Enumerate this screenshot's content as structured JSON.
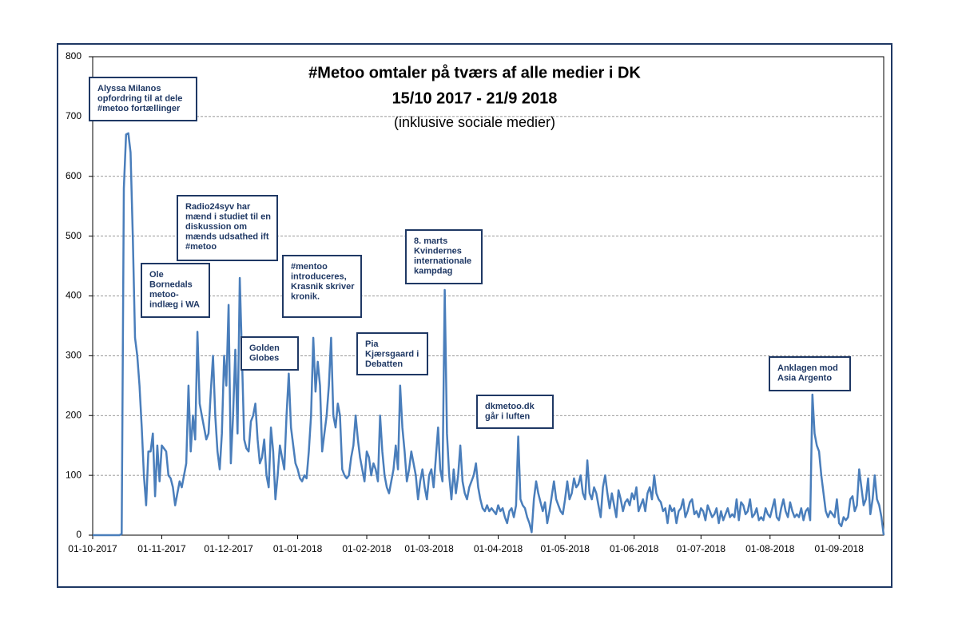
{
  "chart_data": {
    "type": "line",
    "title": "#Metoo omtaler på tværs af alle medier i DK",
    "subtitle": [
      "15/10 2017 - 21/9 2018",
      "(inklusive sociale medier)"
    ],
    "color": "#4a7ebb",
    "grid": true,
    "ylim": [
      0,
      800
    ],
    "yticks": [
      0,
      100,
      200,
      300,
      400,
      500,
      600,
      700,
      800
    ],
    "xlim": [
      "2017-10-01",
      "2018-09-21"
    ],
    "xticks": [
      {
        "value": "2017-10-01",
        "label": "01-10-2017"
      },
      {
        "value": "2017-11-01",
        "label": "01-11-2017"
      },
      {
        "value": "2017-12-01",
        "label": "01-12-2017"
      },
      {
        "value": "2018-01-01",
        "label": "01-01-2018"
      },
      {
        "value": "2018-02-01",
        "label": "01-02-2018"
      },
      {
        "value": "2018-03-01",
        "label": "01-03-2018"
      },
      {
        "value": "2018-04-01",
        "label": "01-04-2018"
      },
      {
        "value": "2018-05-01",
        "label": "01-05-2018"
      },
      {
        "value": "2018-06-01",
        "label": "01-06-2018"
      },
      {
        "value": "2018-07-01",
        "label": "01-07-2018"
      },
      {
        "value": "2018-08-01",
        "label": "01-08-2018"
      },
      {
        "value": "2018-09-01",
        "label": "01-09-2018"
      }
    ],
    "annotations": [
      {
        "lines": [
          "Alyssa Milanos",
          "opfordring til at dele",
          "#metoo fortællinger"
        ]
      },
      {
        "lines": [
          "Ole",
          "Bornedals",
          "metoo-",
          "indlæg i WA"
        ]
      },
      {
        "lines": [
          "Radio24syv har",
          "mænd i studiet til en",
          "diskussion om",
          "mænds udsathed ift",
          "#metoo"
        ]
      },
      {
        "lines": [
          "#mentoo",
          "introduceres,",
          "Krasnik skriver",
          "kronik."
        ]
      },
      {
        "lines": [
          "Golden",
          "Globes"
        ]
      },
      {
        "lines": [
          "Pia",
          "Kjærsgaard i",
          "Debatten"
        ]
      },
      {
        "lines": [
          "8. marts",
          "Kvindernes",
          "internationale",
          "kampdag"
        ]
      },
      {
        "lines": [
          "dkmetoo.dk",
          "går i luften"
        ]
      },
      {
        "lines": [
          "Anklagen mod",
          "Asia Argento"
        ]
      }
    ],
    "x": [
      "2017-10-01",
      "2017-10-02",
      "2017-10-03",
      "2017-10-04",
      "2017-10-05",
      "2017-10-06",
      "2017-10-07",
      "2017-10-08",
      "2017-10-09",
      "2017-10-10",
      "2017-10-11",
      "2017-10-12",
      "2017-10-13",
      "2017-10-14",
      "2017-10-15",
      "2017-10-16",
      "2017-10-17",
      "2017-10-18",
      "2017-10-19",
      "2017-10-20",
      "2017-10-21",
      "2017-10-22",
      "2017-10-23",
      "2017-10-24",
      "2017-10-25",
      "2017-10-26",
      "2017-10-27",
      "2017-10-28",
      "2017-10-29",
      "2017-10-30",
      "2017-10-31",
      "2017-11-01",
      "2017-11-02",
      "2017-11-03",
      "2017-11-04",
      "2017-11-05",
      "2017-11-06",
      "2017-11-07",
      "2017-11-08",
      "2017-11-09",
      "2017-11-10",
      "2017-11-11",
      "2017-11-12",
      "2017-11-13",
      "2017-11-14",
      "2017-11-15",
      "2017-11-16",
      "2017-11-17",
      "2017-11-18",
      "2017-11-19",
      "2017-11-20",
      "2017-11-21",
      "2017-11-22",
      "2017-11-23",
      "2017-11-24",
      "2017-11-25",
      "2017-11-26",
      "2017-11-27",
      "2017-11-28",
      "2017-11-29",
      "2017-11-30",
      "2017-12-01",
      "2017-12-02",
      "2017-12-03",
      "2017-12-04",
      "2017-12-05",
      "2017-12-06",
      "2017-12-07",
      "2017-12-08",
      "2017-12-09",
      "2017-12-10",
      "2017-12-11",
      "2017-12-12",
      "2017-12-13",
      "2017-12-14",
      "2017-12-15",
      "2017-12-16",
      "2017-12-17",
      "2017-12-18",
      "2017-12-19",
      "2017-12-20",
      "2017-12-21",
      "2017-12-22",
      "2017-12-23",
      "2017-12-24",
      "2017-12-25",
      "2017-12-26",
      "2017-12-27",
      "2017-12-28",
      "2017-12-29",
      "2017-12-30",
      "2017-12-31",
      "2018-01-01",
      "2018-01-02",
      "2018-01-03",
      "2018-01-04",
      "2018-01-05",
      "2018-01-06",
      "2018-01-07",
      "2018-01-08",
      "2018-01-09",
      "2018-01-10",
      "2018-01-11",
      "2018-01-12",
      "2018-01-13",
      "2018-01-14",
      "2018-01-15",
      "2018-01-16",
      "2018-01-17",
      "2018-01-18",
      "2018-01-19",
      "2018-01-20",
      "2018-01-21",
      "2018-01-22",
      "2018-01-23",
      "2018-01-24",
      "2018-01-25",
      "2018-01-26",
      "2018-01-27",
      "2018-01-28",
      "2018-01-29",
      "2018-01-30",
      "2018-01-31",
      "2018-02-01",
      "2018-02-02",
      "2018-02-03",
      "2018-02-04",
      "2018-02-05",
      "2018-02-06",
      "2018-02-07",
      "2018-02-08",
      "2018-02-09",
      "2018-02-10",
      "2018-02-11",
      "2018-02-12",
      "2018-02-13",
      "2018-02-14",
      "2018-02-15",
      "2018-02-16",
      "2018-02-17",
      "2018-02-18",
      "2018-02-19",
      "2018-02-20",
      "2018-02-21",
      "2018-02-22",
      "2018-02-23",
      "2018-02-24",
      "2018-02-25",
      "2018-02-26",
      "2018-02-27",
      "2018-02-28",
      "2018-03-01",
      "2018-03-02",
      "2018-03-03",
      "2018-03-04",
      "2018-03-05",
      "2018-03-06",
      "2018-03-07",
      "2018-03-08",
      "2018-03-09",
      "2018-03-10",
      "2018-03-11",
      "2018-03-12",
      "2018-03-13",
      "2018-03-14",
      "2018-03-15",
      "2018-03-16",
      "2018-03-17",
      "2018-03-18",
      "2018-03-19",
      "2018-03-20",
      "2018-03-21",
      "2018-03-22",
      "2018-03-23",
      "2018-03-24",
      "2018-03-25",
      "2018-03-26",
      "2018-03-27",
      "2018-03-28",
      "2018-03-29",
      "2018-03-30",
      "2018-03-31",
      "2018-04-01",
      "2018-04-02",
      "2018-04-03",
      "2018-04-04",
      "2018-04-05",
      "2018-04-06",
      "2018-04-07",
      "2018-04-08",
      "2018-04-09",
      "2018-04-10",
      "2018-04-11",
      "2018-04-12",
      "2018-04-13",
      "2018-04-14",
      "2018-04-15",
      "2018-04-16",
      "2018-04-17",
      "2018-04-18",
      "2018-04-19",
      "2018-04-20",
      "2018-04-21",
      "2018-04-22",
      "2018-04-23",
      "2018-04-24",
      "2018-04-25",
      "2018-04-26",
      "2018-04-27",
      "2018-04-28",
      "2018-04-29",
      "2018-04-30",
      "2018-05-01",
      "2018-05-02",
      "2018-05-03",
      "2018-05-04",
      "2018-05-05",
      "2018-05-06",
      "2018-05-07",
      "2018-05-08",
      "2018-05-09",
      "2018-05-10",
      "2018-05-11",
      "2018-05-12",
      "2018-05-13",
      "2018-05-14",
      "2018-05-15",
      "2018-05-16",
      "2018-05-17",
      "2018-05-18",
      "2018-05-19",
      "2018-05-20",
      "2018-05-21",
      "2018-05-22",
      "2018-05-23",
      "2018-05-24",
      "2018-05-25",
      "2018-05-26",
      "2018-05-27",
      "2018-05-28",
      "2018-05-29",
      "2018-05-30",
      "2018-05-31",
      "2018-06-01",
      "2018-06-02",
      "2018-06-03",
      "2018-06-04",
      "2018-06-05",
      "2018-06-06",
      "2018-06-07",
      "2018-06-08",
      "2018-06-09",
      "2018-06-10",
      "2018-06-11",
      "2018-06-12",
      "2018-06-13",
      "2018-06-14",
      "2018-06-15",
      "2018-06-16",
      "2018-06-17",
      "2018-06-18",
      "2018-06-19",
      "2018-06-20",
      "2018-06-21",
      "2018-06-22",
      "2018-06-23",
      "2018-06-24",
      "2018-06-25",
      "2018-06-26",
      "2018-06-27",
      "2018-06-28",
      "2018-06-29",
      "2018-06-30",
      "2018-07-01",
      "2018-07-02",
      "2018-07-03",
      "2018-07-04",
      "2018-07-05",
      "2018-07-06",
      "2018-07-07",
      "2018-07-08",
      "2018-07-09",
      "2018-07-10",
      "2018-07-11",
      "2018-07-12",
      "2018-07-13",
      "2018-07-14",
      "2018-07-15",
      "2018-07-16",
      "2018-07-17",
      "2018-07-18",
      "2018-07-19",
      "2018-07-20",
      "2018-07-21",
      "2018-07-22",
      "2018-07-23",
      "2018-07-24",
      "2018-07-25",
      "2018-07-26",
      "2018-07-27",
      "2018-07-28",
      "2018-07-29",
      "2018-07-30",
      "2018-07-31",
      "2018-08-01",
      "2018-08-02",
      "2018-08-03",
      "2018-08-04",
      "2018-08-05",
      "2018-08-06",
      "2018-08-07",
      "2018-08-08",
      "2018-08-09",
      "2018-08-10",
      "2018-08-11",
      "2018-08-12",
      "2018-08-13",
      "2018-08-14",
      "2018-08-15",
      "2018-08-16",
      "2018-08-17",
      "2018-08-18",
      "2018-08-19",
      "2018-08-20",
      "2018-08-21",
      "2018-08-22",
      "2018-08-23",
      "2018-08-24",
      "2018-08-25",
      "2018-08-26",
      "2018-08-27",
      "2018-08-28",
      "2018-08-29",
      "2018-08-30",
      "2018-08-31",
      "2018-09-01",
      "2018-09-02",
      "2018-09-03",
      "2018-09-04",
      "2018-09-05",
      "2018-09-06",
      "2018-09-07",
      "2018-09-08",
      "2018-09-09",
      "2018-09-10",
      "2018-09-11",
      "2018-09-12",
      "2018-09-13",
      "2018-09-14",
      "2018-09-15",
      "2018-09-16",
      "2018-09-17",
      "2018-09-18",
      "2018-09-19",
      "2018-09-20",
      "2018-09-21"
    ],
    "values": [
      0,
      0,
      0,
      0,
      0,
      0,
      0,
      0,
      0,
      0,
      0,
      0,
      0,
      2,
      580,
      670,
      672,
      640,
      500,
      330,
      300,
      250,
      180,
      100,
      50,
      140,
      140,
      170,
      65,
      150,
      90,
      150,
      145,
      140,
      100,
      95,
      80,
      50,
      70,
      90,
      80,
      100,
      120,
      250,
      140,
      200,
      160,
      340,
      220,
      200,
      180,
      160,
      170,
      240,
      300,
      200,
      140,
      110,
      170,
      300,
      250,
      385,
      120,
      200,
      310,
      170,
      430,
      300,
      160,
      145,
      140,
      190,
      200,
      220,
      160,
      120,
      130,
      160,
      100,
      80,
      180,
      140,
      60,
      100,
      150,
      130,
      110,
      200,
      270,
      180,
      150,
      120,
      110,
      95,
      90,
      100,
      95,
      140,
      200,
      330,
      240,
      290,
      250,
      140,
      170,
      200,
      250,
      330,
      200,
      180,
      220,
      200,
      110,
      100,
      95,
      100,
      130,
      150,
      200,
      160,
      130,
      110,
      90,
      140,
      130,
      100,
      120,
      110,
      90,
      200,
      140,
      100,
      80,
      70,
      90,
      110,
      150,
      110,
      250,
      180,
      140,
      90,
      110,
      140,
      120,
      100,
      60,
      90,
      110,
      80,
      60,
      100,
      110,
      80,
      130,
      180,
      110,
      90,
      410,
      170,
      100,
      60,
      110,
      70,
      100,
      150,
      90,
      70,
      60,
      80,
      90,
      100,
      120,
      80,
      60,
      45,
      40,
      50,
      40,
      45,
      40,
      35,
      50,
      40,
      45,
      30,
      20,
      40,
      45,
      30,
      50,
      165,
      60,
      50,
      45,
      30,
      20,
      5,
      60,
      90,
      70,
      55,
      40,
      55,
      20,
      40,
      65,
      90,
      60,
      50,
      40,
      35,
      60,
      90,
      60,
      70,
      95,
      80,
      85,
      100,
      70,
      60,
      125,
      70,
      60,
      80,
      70,
      50,
      30,
      80,
      100,
      70,
      45,
      70,
      50,
      30,
      75,
      60,
      40,
      55,
      60,
      50,
      70,
      60,
      80,
      40,
      50,
      60,
      40,
      70,
      80,
      60,
      100,
      70,
      60,
      55,
      40,
      45,
      20,
      50,
      40,
      45,
      20,
      40,
      45,
      60,
      30,
      40,
      55,
      60,
      35,
      40,
      30,
      45,
      40,
      25,
      50,
      40,
      30,
      35,
      45,
      20,
      40,
      25,
      35,
      45,
      30,
      35,
      30,
      60,
      25,
      55,
      50,
      35,
      40,
      60,
      30,
      35,
      45,
      25,
      30,
      25,
      45,
      35,
      30,
      45,
      60,
      30,
      25,
      45,
      60,
      40,
      30,
      55,
      40,
      30,
      35,
      30,
      45,
      25,
      40,
      45,
      25,
      235,
      170,
      150,
      140,
      100,
      70,
      40,
      30,
      40,
      35,
      30,
      60,
      20,
      15,
      30,
      25,
      30,
      60,
      65,
      40,
      50,
      110,
      80,
      50,
      60,
      95,
      35,
      60,
      100,
      60,
      50,
      30,
      0
    ]
  }
}
